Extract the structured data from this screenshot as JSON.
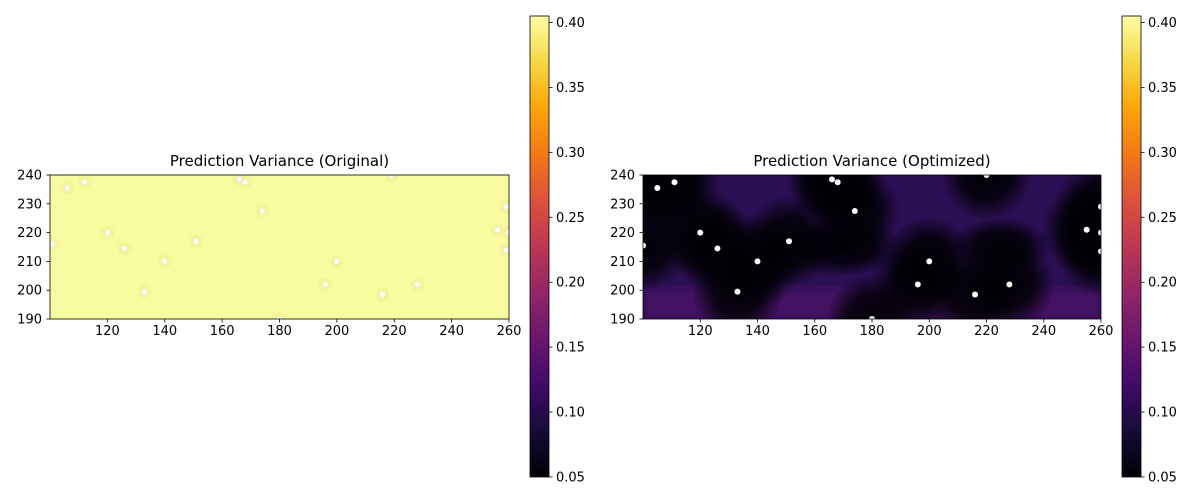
{
  "chart_data": [
    {
      "type": "heatmap",
      "title": "Prediction Variance (Original)",
      "xlabel": "",
      "ylabel": "",
      "xlim": [
        100,
        260
      ],
      "ylim": [
        190,
        240
      ],
      "x_ticks": [
        120,
        140,
        160,
        180,
        200,
        220,
        240,
        260
      ],
      "y_ticks": [
        190,
        200,
        210,
        220,
        230,
        240
      ],
      "colormap": "inferno",
      "color_range": [
        0.05,
        0.405
      ],
      "colorbar_ticks": [
        0.05,
        0.1,
        0.15,
        0.2,
        0.25,
        0.3,
        0.35,
        0.4
      ],
      "surface_value": 0.4,
      "points": [
        [
          101,
          216
        ],
        [
          106,
          235.5
        ],
        [
          112,
          237.5
        ],
        [
          120,
          220
        ],
        [
          126,
          214.5
        ],
        [
          133,
          199.5
        ],
        [
          140,
          210
        ],
        [
          151,
          217
        ],
        [
          166,
          238.5
        ],
        [
          168,
          237.5
        ],
        [
          174,
          227.5
        ],
        [
          180,
          190
        ],
        [
          196,
          202
        ],
        [
          200,
          210
        ],
        [
          216,
          198.5
        ],
        [
          219,
          240
        ],
        [
          228,
          202
        ],
        [
          256,
          221
        ],
        [
          259,
          229
        ],
        [
          259,
          214
        ],
        [
          260,
          220
        ]
      ]
    },
    {
      "type": "heatmap",
      "title": "Prediction Variance (Optimized)",
      "xlabel": "",
      "ylabel": "",
      "xlim": [
        100,
        260
      ],
      "ylim": [
        190,
        240
      ],
      "x_ticks": [
        120,
        140,
        160,
        180,
        200,
        220,
        240,
        260
      ],
      "y_ticks": [
        190,
        200,
        210,
        220,
        230,
        240
      ],
      "colormap": "inferno",
      "color_range": [
        0.05,
        0.405
      ],
      "colorbar_ticks": [
        0.05,
        0.1,
        0.15,
        0.2,
        0.25,
        0.3,
        0.35,
        0.4
      ],
      "surface_value_range": [
        0.05,
        0.15
      ],
      "points": [
        [
          100,
          215.5
        ],
        [
          105,
          235.5
        ],
        [
          111,
          237.5
        ],
        [
          120,
          220
        ],
        [
          126,
          214.5
        ],
        [
          133,
          199.5
        ],
        [
          140,
          210
        ],
        [
          151,
          217
        ],
        [
          166,
          238.5
        ],
        [
          168,
          237.5
        ],
        [
          174,
          227.5
        ],
        [
          180,
          190
        ],
        [
          196,
          202
        ],
        [
          200,
          210
        ],
        [
          216,
          198.5
        ],
        [
          220,
          240
        ],
        [
          228,
          202
        ],
        [
          255,
          221
        ],
        [
          260,
          229
        ],
        [
          260,
          213.5
        ],
        [
          260,
          220
        ]
      ]
    }
  ]
}
